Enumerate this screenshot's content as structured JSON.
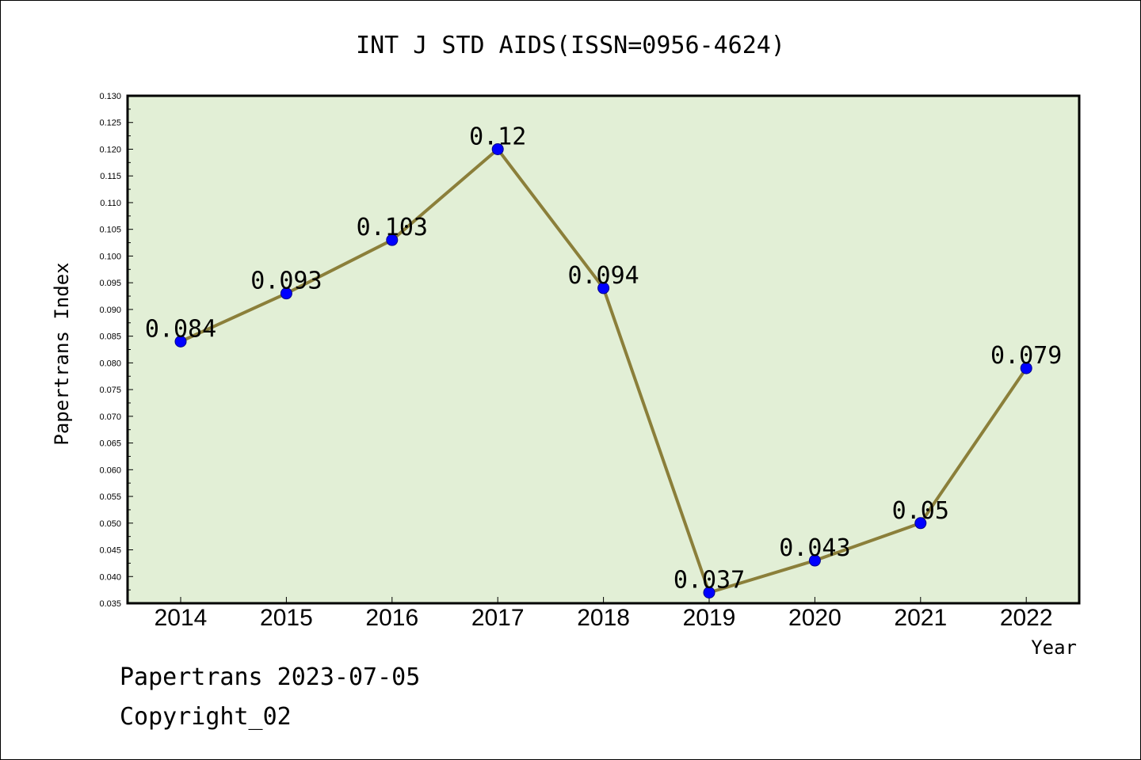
{
  "chart_data": {
    "type": "line",
    "title": "INT J STD AIDS(ISSN=0956-4624)",
    "xlabel": "Year",
    "ylabel": "Papertrans Index",
    "categories": [
      "2014",
      "2015",
      "2016",
      "2017",
      "2018",
      "2019",
      "2020",
      "2021",
      "2022"
    ],
    "values": [
      0.084,
      0.093,
      0.103,
      0.12,
      0.094,
      0.037,
      0.043,
      0.05,
      0.079
    ],
    "data_labels": [
      "0.084",
      "0.093",
      "0.103",
      "0.12",
      "0.094",
      "0.037",
      "0.043",
      "0.05",
      "0.079"
    ],
    "ylim": [
      0.035,
      0.13
    ],
    "ytick_step": 0.005,
    "ytick_labels": [
      "0.035",
      "0.040",
      "0.045",
      "0.050",
      "0.055",
      "0.060",
      "0.065",
      "0.070",
      "0.075",
      "0.080",
      "0.085",
      "0.090",
      "0.095",
      "0.100",
      "0.105",
      "0.110",
      "0.115",
      "0.120",
      "0.125",
      "0.130"
    ],
    "grid": false,
    "legend": "none",
    "colors": {
      "plot_background": "#e2efd6",
      "line": "#8b7f3a",
      "marker": "#0000ff",
      "marker_edge": "#00008b"
    }
  },
  "footer": {
    "line1": "Papertrans 2023-07-05",
    "line2": "Copyright_02"
  }
}
